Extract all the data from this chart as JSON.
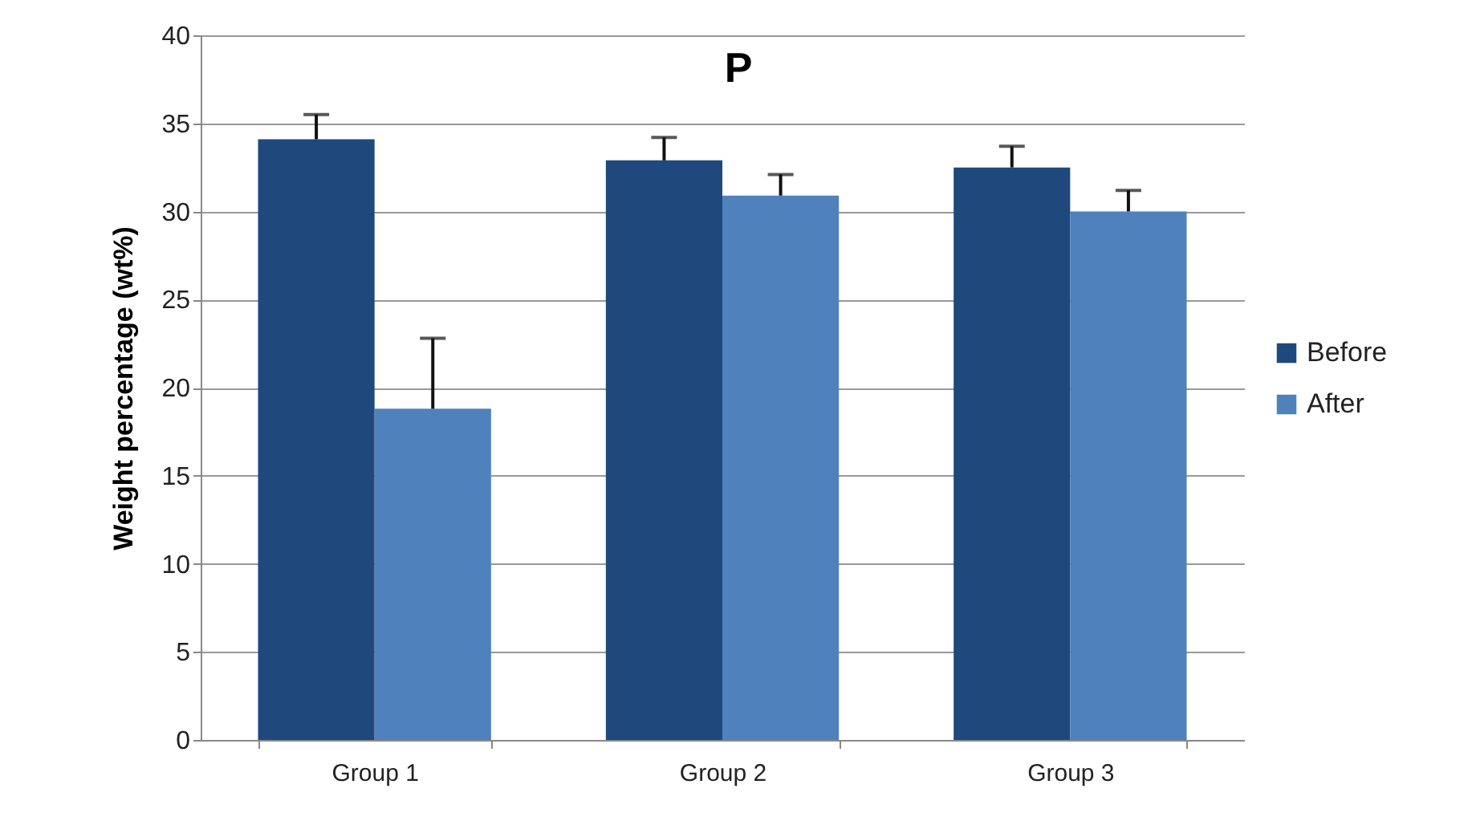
{
  "chart_data": {
    "type": "bar",
    "title": "P",
    "ylabel": "Weight percentage (wt%)",
    "categories": [
      "Group 1",
      "Group 2",
      "Group 3"
    ],
    "series": [
      {
        "name": "Before",
        "color": "#1f497d",
        "values": [
          34.1,
          32.9,
          32.5
        ],
        "errors": [
          [
            34.1,
            35.5
          ],
          [
            32.9,
            34.2
          ],
          [
            32.5,
            33.7
          ]
        ]
      },
      {
        "name": "After",
        "color": "#4f81bd",
        "values": [
          18.8,
          30.9,
          30.0
        ],
        "errors": [
          [
            18.8,
            22.8
          ],
          [
            30.9,
            32.1
          ],
          [
            30.0,
            31.2
          ]
        ]
      }
    ],
    "ylim": [
      0,
      40
    ],
    "yticks": [
      0,
      5,
      10,
      15,
      20,
      25,
      30,
      35,
      40
    ],
    "grid": "y",
    "legend": "right"
  }
}
